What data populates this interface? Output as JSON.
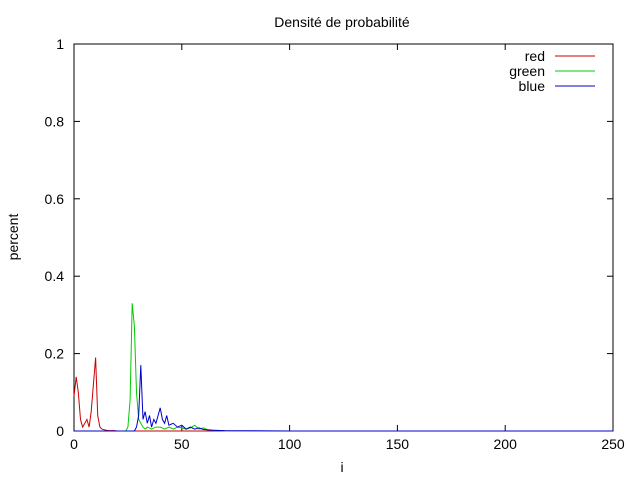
{
  "chart_data": {
    "type": "line",
    "title": "Densité de probabilité",
    "xlabel": "i",
    "ylabel": "percent",
    "xlim": [
      0,
      250
    ],
    "ylim": [
      0,
      1
    ],
    "xticks": [
      0,
      50,
      100,
      150,
      200,
      250
    ],
    "yticks": [
      0,
      0.2,
      0.4,
      0.6,
      0.8,
      1
    ],
    "xtick_labels": [
      "0",
      "50",
      "100",
      "150",
      "200",
      "250"
    ],
    "ytick_labels": [
      "0",
      "0.2",
      "0.4",
      "0.6",
      "0.8",
      "1"
    ],
    "grid": false,
    "legend_position": "top-right",
    "series": [
      {
        "name": "red",
        "color": "#cc0000",
        "x": [
          0,
          1,
          2,
          3,
          4,
          5,
          6,
          7,
          8,
          9,
          10,
          11,
          12,
          13,
          14,
          15,
          16,
          17,
          18,
          19,
          20,
          22,
          24,
          26,
          28,
          30,
          40,
          60,
          100,
          150,
          200,
          250
        ],
        "y": [
          0.09,
          0.14,
          0.1,
          0.03,
          0.01,
          0.02,
          0.03,
          0.01,
          0.05,
          0.12,
          0.19,
          0.04,
          0.01,
          0.005,
          0.003,
          0.002,
          0.001,
          0.001,
          0.001,
          0.001,
          0,
          0,
          0,
          0,
          0,
          0,
          0,
          0,
          0,
          0,
          0,
          0
        ]
      },
      {
        "name": "green",
        "color": "#00cc00",
        "x": [
          0,
          20,
          24,
          25,
          26,
          27,
          28,
          29,
          30,
          31,
          32,
          33,
          34,
          36,
          38,
          40,
          42,
          44,
          46,
          48,
          50,
          52,
          54,
          56,
          58,
          60,
          62,
          70,
          100,
          150,
          200,
          250
        ],
        "y": [
          0,
          0,
          0,
          0.01,
          0.08,
          0.33,
          0.27,
          0.1,
          0.03,
          0.02,
          0.01,
          0.005,
          0.01,
          0.005,
          0.01,
          0.01,
          0.005,
          0.01,
          0.005,
          0.01,
          0.008,
          0.005,
          0.008,
          0.015,
          0.005,
          0.008,
          0.003,
          0,
          0,
          0,
          0,
          0
        ]
      },
      {
        "name": "blue",
        "color": "#0000cc",
        "x": [
          0,
          28,
          29,
          30,
          31,
          32,
          33,
          34,
          35,
          36,
          37,
          38,
          39,
          40,
          41,
          42,
          43,
          44,
          46,
          48,
          50,
          52,
          54,
          56,
          58,
          60,
          64,
          70,
          100,
          150,
          200,
          250
        ],
        "y": [
          0,
          0,
          0.01,
          0.04,
          0.17,
          0.03,
          0.05,
          0.02,
          0.04,
          0.01,
          0.03,
          0.02,
          0.04,
          0.06,
          0.03,
          0.02,
          0.04,
          0.015,
          0.02,
          0.01,
          0.015,
          0.005,
          0.01,
          0.005,
          0.008,
          0.004,
          0.002,
          0.001,
          0,
          0,
          0,
          0
        ]
      }
    ]
  }
}
